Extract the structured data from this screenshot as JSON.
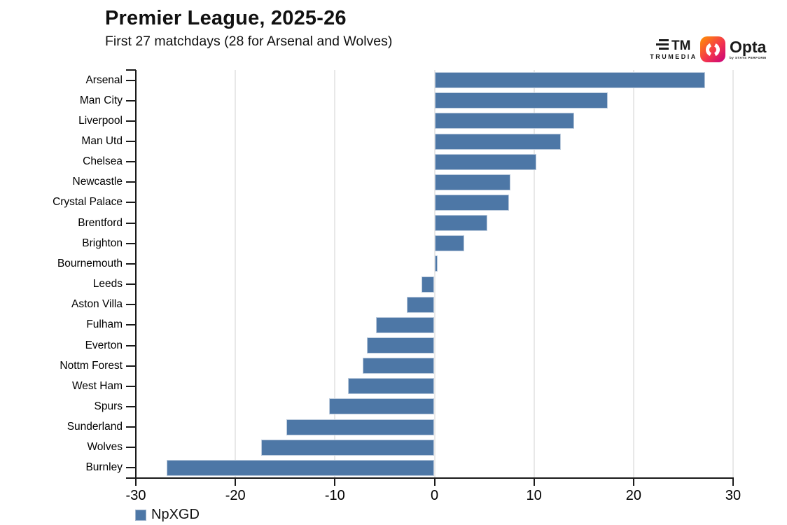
{
  "header": {
    "title": "Premier League, 2025-26",
    "subtitle": "First 27 matchdays (28 for Arsenal and Wolves)"
  },
  "logos": {
    "trumedia_label": "TRUMEDIA",
    "trumedia_mark": "TM",
    "opta_label": "Opta",
    "opta_sublabel": "by STATS PERFORM"
  },
  "legend": {
    "label": "NpXGD",
    "swatch_color": "#4d77a6"
  },
  "chart_data": {
    "type": "bar",
    "orientation": "horizontal",
    "title": "Premier League, 2025-26",
    "subtitle": "First 27 matchdays (28 for Arsenal and Wolves)",
    "series_name": "NpXGD",
    "categories": [
      "Arsenal",
      "Man City",
      "Liverpool",
      "Man Utd",
      "Chelsea",
      "Newcastle",
      "Crystal Palace",
      "Brentford",
      "Brighton",
      "Bournemouth",
      "Leeds",
      "Aston Villa",
      "Fulham",
      "Everton",
      "Nottm Forest",
      "West Ham",
      "Spurs",
      "Sunderland",
      "Wolves",
      "Burnley"
    ],
    "values": [
      27.2,
      17.4,
      14.0,
      12.7,
      10.2,
      7.6,
      7.5,
      5.3,
      3.0,
      0.3,
      -1.3,
      -2.8,
      -5.9,
      -6.8,
      -7.2,
      -8.7,
      -10.6,
      -14.9,
      -17.4,
      -26.9
    ],
    "xlabel": "",
    "ylabel": "",
    "xlim": [
      -30,
      30
    ],
    "xticks": [
      -30,
      -20,
      -10,
      0,
      10,
      20,
      30
    ],
    "grid": "vertical",
    "legend_position": "bottom-left",
    "bar_color": "#4d77a6",
    "bar_border_color": "#bccbdd",
    "grid_color": "#e8e8e8",
    "axis_color": "#1a1a1a"
  }
}
